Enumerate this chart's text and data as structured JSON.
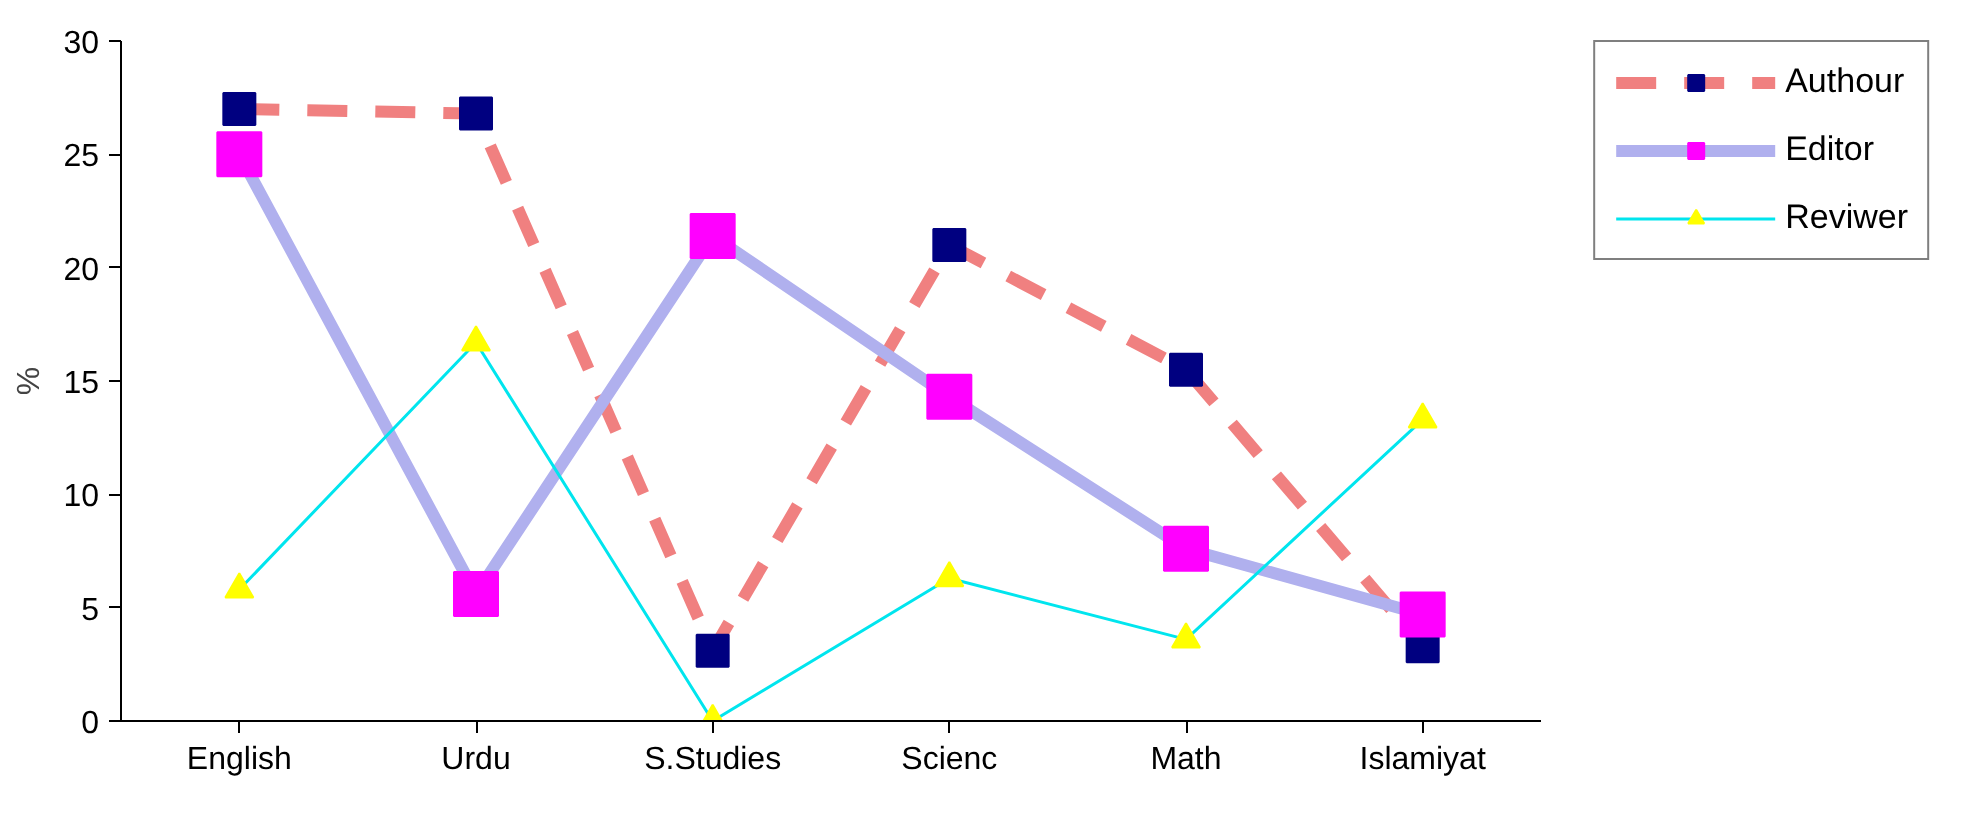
{
  "chart_data": {
    "type": "line",
    "ylabel": "%",
    "categories": [
      "English",
      "Urdu",
      "S.Studies",
      "Scienc",
      "Math",
      "Islamiyat"
    ],
    "ylim": [
      0,
      30
    ],
    "yticks": [
      0,
      5,
      10,
      15,
      20,
      25,
      30
    ],
    "grid": false,
    "legend": "top right",
    "series": [
      {
        "name": "Authour",
        "color": "#f08080",
        "colors": [
          "#000080",
          "#000080",
          "#000080",
          "#000080",
          "#000080",
          "#000080"
        ],
        "marker": "square",
        "line_style": "dashed",
        "values": [
          27,
          26.8,
          3.1,
          21,
          15.5,
          3.3
        ]
      },
      {
        "name": "Editor",
        "color": "#b0b0ee",
        "colors": [
          "#ff00ff",
          "#ff00ff",
          "#ff00ff",
          "#ff00ff",
          "#ff00ff",
          "#ff00ff"
        ],
        "marker": "square",
        "line_style": "solid",
        "values": [
          25,
          5.6,
          21.4,
          14.3,
          7.6,
          4.7
        ]
      },
      {
        "name": "Reviwer",
        "color": "#00e5ee",
        "colors": [
          "#ffff00",
          "#ffff00",
          "#ffff00",
          "#ffff00",
          "#ffff00",
          "#ffff00"
        ],
        "marker": "triangle",
        "line_style": "solid",
        "values": [
          5.8,
          16.7,
          0,
          6.3,
          3.6,
          13.3
        ]
      }
    ]
  }
}
